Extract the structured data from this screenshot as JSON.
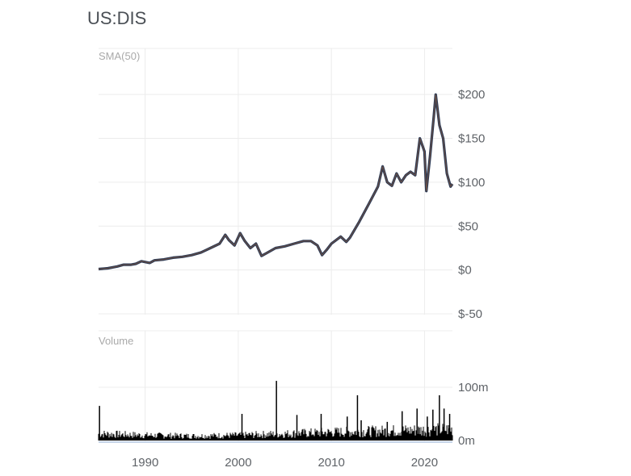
{
  "title": "US:DIS",
  "chart_data": [
    {
      "type": "line",
      "label": "SMA(50)",
      "ylim": [
        -50,
        220
      ],
      "xlim": [
        1985,
        2023
      ],
      "y_ticks": [
        "$200",
        "$150",
        "$100",
        "$50",
        "$0",
        "$-50"
      ],
      "y_tick_values": [
        200,
        150,
        100,
        50,
        0,
        -50
      ],
      "grid": true,
      "series": [
        {
          "color": "#2b3a55",
          "overlay_color": "#8b5a3c",
          "x": [
            1985.0,
            1986.0,
            1987.0,
            1987.7,
            1988.5,
            1989.0,
            1989.6,
            1990.5,
            1991.0,
            1992.0,
            1993.0,
            1994.0,
            1995.0,
            1996.0,
            1997.0,
            1998.0,
            1998.6,
            1999.0,
            1999.6,
            2000.2,
            2000.7,
            2001.3,
            2001.9,
            2002.5,
            2003.0,
            2004.0,
            2005.0,
            2006.0,
            2007.0,
            2007.8,
            2008.5,
            2009.0,
            2009.5,
            2010.0,
            2011.0,
            2011.6,
            2012.0,
            2013.0,
            2014.0,
            2015.0,
            2015.5,
            2016.0,
            2016.5,
            2017.0,
            2017.5,
            2018.0,
            2018.5,
            2019.0,
            2019.5,
            2020.0,
            2020.2,
            2020.6,
            2021.0,
            2021.2,
            2021.6,
            2022.0,
            2022.4,
            2022.8,
            2023.0
          ],
          "y": [
            1,
            2,
            4,
            6,
            6,
            7,
            10,
            8,
            11,
            12,
            14,
            15,
            17,
            20,
            25,
            30,
            40,
            34,
            28,
            42,
            33,
            25,
            30,
            16,
            19,
            25,
            27,
            30,
            33,
            33,
            28,
            17,
            23,
            30,
            38,
            32,
            37,
            55,
            75,
            95,
            118,
            100,
            96,
            110,
            100,
            108,
            112,
            108,
            150,
            135,
            90,
            130,
            175,
            200,
            165,
            150,
            110,
            95,
            98
          ]
        }
      ]
    },
    {
      "type": "bar",
      "label": "Volume",
      "xlabel_ticks": [
        "1990",
        "2000",
        "2010",
        "2020"
      ],
      "xlabel_tick_values": [
        1990,
        2000,
        2010,
        2020
      ],
      "y_ticks": [
        "100m",
        "0m"
      ],
      "y_tick_values": [
        100,
        0
      ],
      "ylim": [
        0,
        110
      ],
      "grid": true,
      "series": [
        {
          "color": "#000000",
          "x": [
            1985.1,
            2000.4,
            2004.1,
            2006.3,
            2008.9,
            2011.7,
            2012.8,
            2013.2,
            2016.0,
            2017.6,
            2019.2,
            2020.3,
            2020.9,
            2021.6,
            2022.1,
            2022.7
          ],
          "values": [
            65,
            50,
            112,
            48,
            50,
            45,
            85,
            38,
            35,
            55,
            60,
            45,
            58,
            85,
            60,
            50
          ],
          "baseline_x": [
            1985,
            1990,
            1995,
            2000,
            2005,
            2010,
            2015,
            2020,
            2023
          ],
          "baseline_values": [
            18,
            14,
            12,
            14,
            18,
            22,
            25,
            28,
            30
          ]
        }
      ]
    }
  ]
}
